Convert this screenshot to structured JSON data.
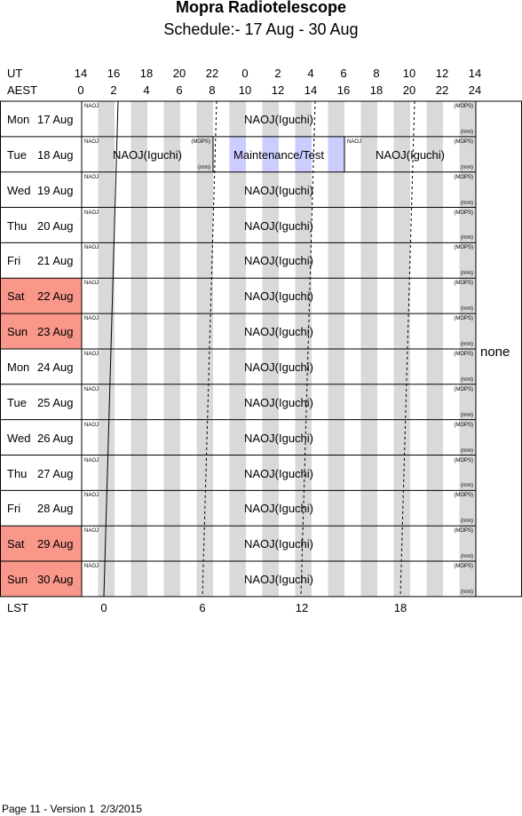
{
  "header": {
    "title": "Mopra Radiotelescope",
    "subtitle": "Schedule:- 17 Aug - 30 Aug"
  },
  "axes": {
    "ut_label": "UT",
    "aest_label": "AEST",
    "lst_label": "LST",
    "ut_ticks": [
      "14",
      "16",
      "18",
      "20",
      "22",
      "0",
      "2",
      "4",
      "6",
      "8",
      "10",
      "12",
      "14"
    ],
    "aest_ticks": [
      "0",
      "2",
      "4",
      "6",
      "8",
      "10",
      "12",
      "14",
      "16",
      "18",
      "20",
      "22",
      "24"
    ],
    "lst_ticks": [
      "0",
      "6",
      "12",
      "18"
    ]
  },
  "days": [
    {
      "weekday": "Mon",
      "date": "17 Aug",
      "weekend": false
    },
    {
      "weekday": "Tue",
      "date": "18 Aug",
      "weekend": false
    },
    {
      "weekday": "Wed",
      "date": "19 Aug",
      "weekend": false
    },
    {
      "weekday": "Thu",
      "date": "20 Aug",
      "weekend": false
    },
    {
      "weekday": "Fri",
      "date": "21 Aug",
      "weekend": false
    },
    {
      "weekday": "Sat",
      "date": "22 Aug",
      "weekend": true
    },
    {
      "weekday": "Sun",
      "date": "23 Aug",
      "weekend": true
    },
    {
      "weekday": "Mon",
      "date": "24 Aug",
      "weekend": false
    },
    {
      "weekday": "Tue",
      "date": "25 Aug",
      "weekend": false
    },
    {
      "weekday": "Wed",
      "date": "26 Aug",
      "weekend": false
    },
    {
      "weekday": "Thu",
      "date": "27 Aug",
      "weekend": false
    },
    {
      "weekday": "Fri",
      "date": "28 Aug",
      "weekend": false
    },
    {
      "weekday": "Sat",
      "date": "29 Aug",
      "weekend": true
    },
    {
      "weekday": "Sun",
      "date": "30 Aug",
      "weekend": true
    }
  ],
  "schedule": {
    "default_block": {
      "project": "NAOJ(Iguchi)",
      "tag_left": "NAOJ",
      "tag_right_top": "(MOPS)",
      "tag_right_bottom": "(nnn)"
    },
    "special_day": {
      "day_index": 1,
      "blocks": [
        {
          "project": "NAOJ(Iguchi)",
          "start": 0,
          "end": 8,
          "tag_left": "NAOJ",
          "tag_right_top": "(MOPS)",
          "tag_right_bottom": "(nnn)"
        },
        {
          "project": "Maintenance/Test",
          "start": 8,
          "end": 16,
          "type": "maintenance"
        },
        {
          "project": "NAOJ(Iguchi)",
          "start": 16,
          "end": 24,
          "tag_left": "NAOJ",
          "tag_right_top": "(MOPS)",
          "tag_right_bottom": "(nnn)"
        }
      ]
    }
  },
  "side_note": "none",
  "footer": "Page 11 - Version 1  2/3/2015",
  "colors": {
    "weekend": "#f8978a",
    "stripe": "#d9d9d9",
    "maintenance_stripe": "#ccccff"
  }
}
